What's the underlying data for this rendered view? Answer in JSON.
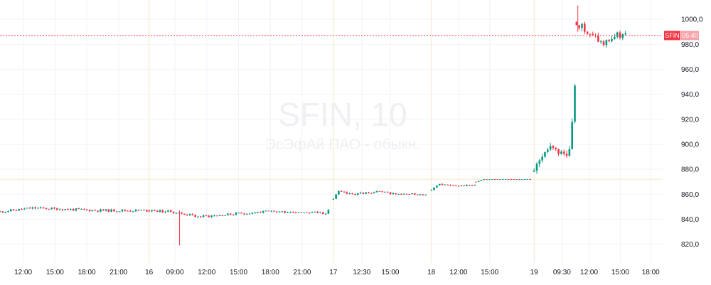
{
  "chart_data": {
    "type": "candlestick",
    "symbol_watermark": "SFIN, 10",
    "name_watermark": "ЭсЭфАй ПАО - обыкн.",
    "price_badge": {
      "label": "SFIN",
      "time": "05:40"
    },
    "current_price": 987,
    "ylim": [
      805,
      1012
    ],
    "y_ticks": [
      820,
      840,
      860,
      880,
      900,
      920,
      940,
      960,
      980,
      1000
    ],
    "y_tick_labels": [
      "820,0",
      "840,0",
      "860,0",
      "880,0",
      "900,0",
      "920,0",
      "940,0",
      "960,0",
      "980,0",
      "1000,0"
    ],
    "x_ticks": [
      {
        "label": "12:00",
        "x": 0.035
      },
      {
        "label": "15:00",
        "x": 0.083
      },
      {
        "label": "18:00",
        "x": 0.131
      },
      {
        "label": "21:00",
        "x": 0.179
      },
      {
        "label": "16",
        "x": 0.225,
        "day": true
      },
      {
        "label": "09:00",
        "x": 0.264
      },
      {
        "label": "12:00",
        "x": 0.312
      },
      {
        "label": "15:00",
        "x": 0.36
      },
      {
        "label": "18:00",
        "x": 0.408
      },
      {
        "label": "21:00",
        "x": 0.456
      },
      {
        "label": "17",
        "x": 0.503,
        "day": true
      },
      {
        "label": "12:30",
        "x": 0.546
      },
      {
        "label": "15:00",
        "x": 0.589
      },
      {
        "label": "18",
        "x": 0.651,
        "day": true
      },
      {
        "label": "12:00",
        "x": 0.692
      },
      {
        "label": "15:00",
        "x": 0.739
      },
      {
        "label": "19",
        "x": 0.806,
        "day": true
      },
      {
        "label": "09:30",
        "x": 0.848
      },
      {
        "label": "12:00",
        "x": 0.889
      },
      {
        "label": "15:00",
        "x": 0.936
      },
      {
        "label": "18:00",
        "x": 0.982
      }
    ],
    "h_line": 872,
    "colors": {
      "up": "#089981",
      "down": "#f23645",
      "price_line": "#f23645",
      "grid": "#f0f3fa",
      "day_sep": "#f5e7c8",
      "hline": "#f5e7c8"
    },
    "segments": [
      {
        "x0": 0.0,
        "x1": 0.225,
        "points": [
          [
            0.0,
            846
          ],
          [
            0.05,
            849
          ],
          [
            0.1,
            848
          ],
          [
            0.15,
            847
          ],
          [
            0.2,
            847
          ],
          [
            0.225,
            847
          ]
        ],
        "noise": 1.0,
        "seed": 11
      },
      {
        "x0": 0.225,
        "x1": 0.497,
        "points": [
          [
            0.225,
            847
          ],
          [
            0.26,
            846
          ],
          [
            0.3,
            842
          ],
          [
            0.35,
            844
          ],
          [
            0.4,
            846
          ],
          [
            0.45,
            846
          ],
          [
            0.49,
            845
          ],
          [
            0.497,
            847
          ]
        ],
        "noise": 1.0,
        "seed": 23,
        "spike": {
          "x": 0.271,
          "low": 819,
          "high": 847
        }
      },
      {
        "x0": 0.503,
        "x1": 0.645,
        "points": [
          [
            0.503,
            856
          ],
          [
            0.51,
            862
          ],
          [
            0.53,
            860
          ],
          [
            0.57,
            862
          ],
          [
            0.6,
            860
          ],
          [
            0.645,
            860
          ]
        ],
        "noise": 0.8,
        "seed": 37
      },
      {
        "x0": 0.651,
        "x1": 0.718,
        "points": [
          [
            0.651,
            863
          ],
          [
            0.66,
            868
          ],
          [
            0.69,
            867
          ],
          [
            0.718,
            867
          ]
        ],
        "noise": 0.6,
        "seed": 41
      },
      {
        "x0": 0.718,
        "x1": 0.8,
        "points": [
          [
            0.718,
            870
          ],
          [
            0.73,
            872
          ],
          [
            0.8,
            872
          ]
        ],
        "noise": 0.15,
        "seed": 53
      },
      {
        "x0": 0.806,
        "x1": 0.87,
        "points": [
          [
            0.806,
            878
          ],
          [
            0.82,
            892
          ],
          [
            0.83,
            896
          ],
          [
            0.84,
            893
          ],
          [
            0.85,
            891
          ],
          [
            0.86,
            894
          ],
          [
            0.866,
            940
          ],
          [
            0.87,
            960
          ]
        ],
        "noise": 3.0,
        "seed": 61
      },
      {
        "x0": 0.87,
        "x1": 0.945,
        "points": [
          [
            0.87,
            998
          ],
          [
            0.878,
            994
          ],
          [
            0.89,
            987
          ],
          [
            0.9,
            985
          ],
          [
            0.91,
            980
          ],
          [
            0.92,
            984
          ],
          [
            0.93,
            987
          ],
          [
            0.945,
            987
          ]
        ],
        "noise": 3.0,
        "seed": 71,
        "spike": {
          "x": 0.872,
          "low": 990,
          "high": 1011
        }
      }
    ]
  }
}
